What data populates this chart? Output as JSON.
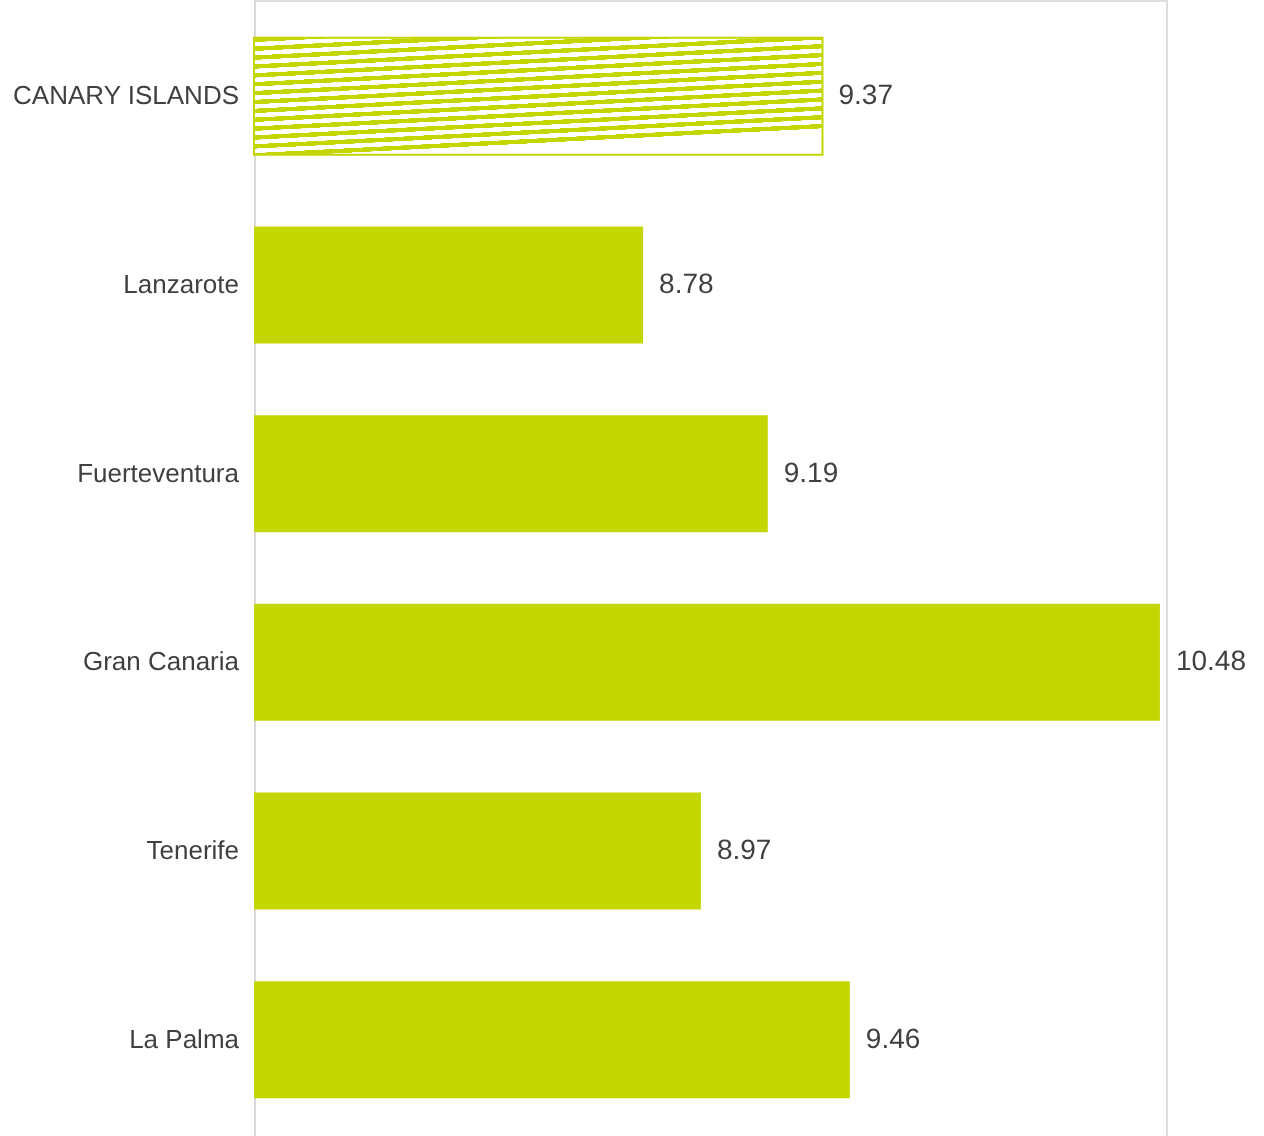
{
  "chart_data": {
    "type": "bar",
    "orientation": "horizontal",
    "categories": [
      "CANARY ISLANDS",
      "Lanzarote",
      "Fuerteventura",
      "Gran Canaria",
      "Tenerife",
      "La Palma"
    ],
    "values": [
      9.37,
      8.78,
      9.19,
      10.48,
      8.97,
      9.46
    ],
    "colors": [
      "#c4d600",
      "#c4d600",
      "#c4d600",
      "#c4d600",
      "#c4d600",
      "#c4d600"
    ],
    "xlim": [
      7.5,
      10.5
    ],
    "data_labels": true,
    "tick_labels": "y"
  }
}
